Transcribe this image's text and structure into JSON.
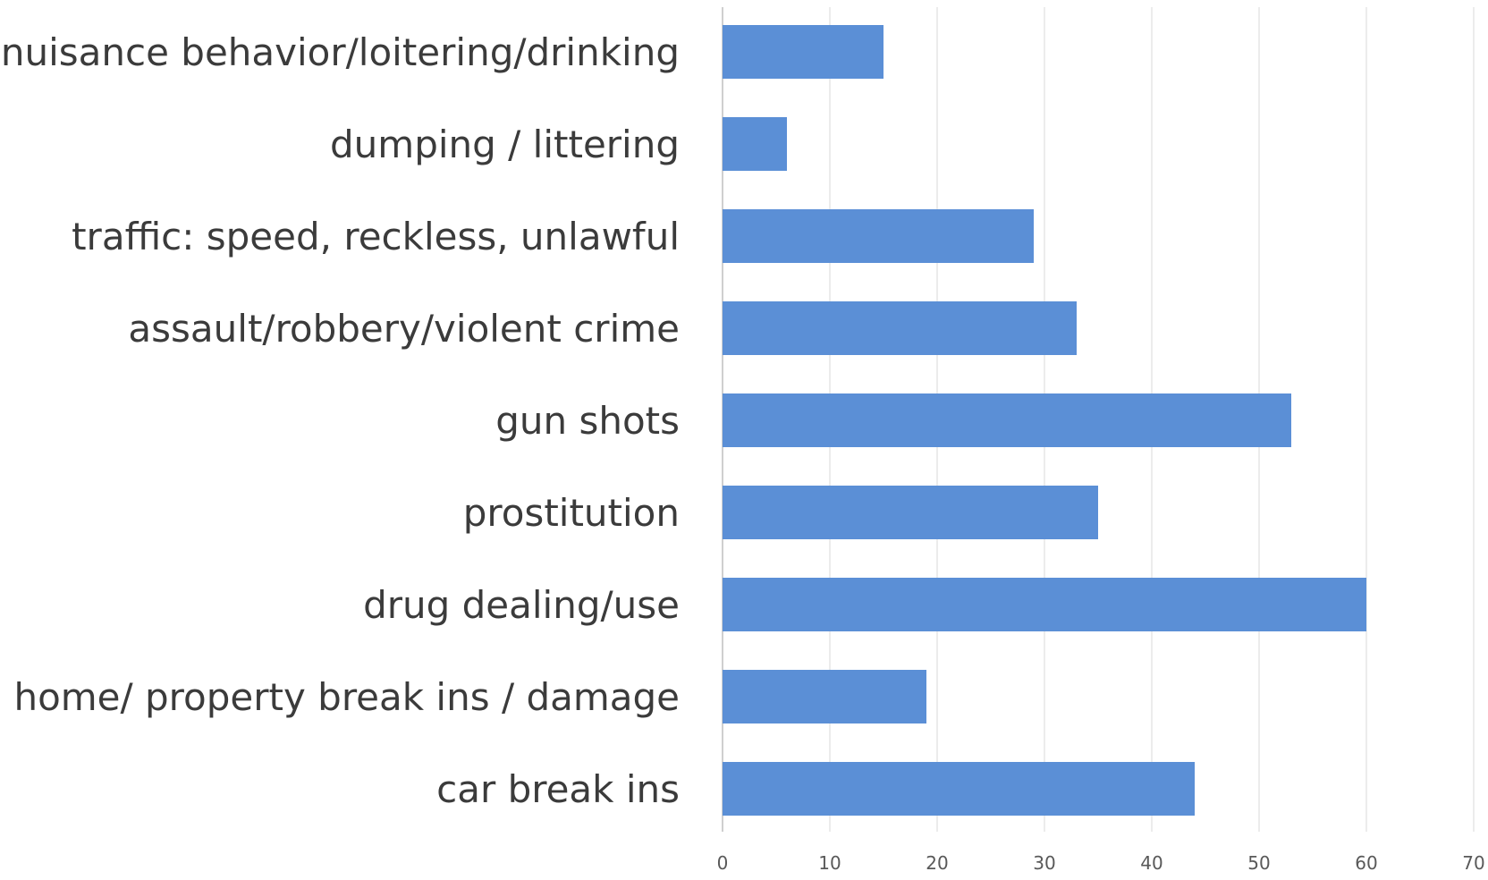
{
  "chart_data": {
    "type": "bar",
    "orientation": "horizontal",
    "title": "",
    "xlabel": "",
    "ylabel": "",
    "categories": [
      "nuisance behavior/loitering/drinking",
      "dumping / littering",
      "traffic: speed, reckless, unlawful",
      "assault/robbery/violent crime",
      "gun shots",
      "prostitution",
      "drug dealing/use",
      "home/ property break ins / damage",
      "car break ins"
    ],
    "values": [
      15,
      6,
      29,
      33,
      53,
      35,
      60,
      19,
      44
    ],
    "xlim": [
      0,
      70
    ],
    "ticks": [
      0,
      10,
      20,
      30,
      40,
      50,
      60,
      70
    ],
    "grid": true,
    "legend": "none",
    "bar_color": "#5b8fd6"
  }
}
